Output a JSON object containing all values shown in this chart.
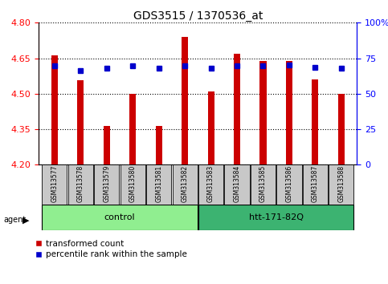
{
  "title": "GDS3515 / 1370536_at",
  "samples": [
    "GSM313577",
    "GSM313578",
    "GSM313579",
    "GSM313580",
    "GSM313581",
    "GSM313582",
    "GSM313583",
    "GSM313584",
    "GSM313585",
    "GSM313586",
    "GSM313587",
    "GSM313588"
  ],
  "red_values": [
    4.663,
    4.558,
    4.365,
    4.5,
    4.365,
    4.74,
    4.508,
    4.668,
    4.638,
    4.638,
    4.562,
    4.498
  ],
  "blue_values": [
    4.618,
    4.598,
    4.608,
    4.618,
    4.608,
    4.618,
    4.608,
    4.618,
    4.618,
    4.62,
    4.612,
    4.608
  ],
  "y_min": 4.2,
  "y_max": 4.8,
  "y_ticks_left": [
    4.2,
    4.35,
    4.5,
    4.65,
    4.8
  ],
  "y_ticks_right_vals": [
    0,
    25,
    50,
    75,
    100
  ],
  "y_ticks_right_labels": [
    "0",
    "25",
    "50",
    "75",
    "100%"
  ],
  "groups": [
    {
      "label": "control",
      "start": 0,
      "end": 5,
      "color": "#90EE90"
    },
    {
      "label": "htt-171-82Q",
      "start": 6,
      "end": 11,
      "color": "#3CB371"
    }
  ],
  "agent_label": "agent",
  "legend_red": "transformed count",
  "legend_blue": "percentile rank within the sample",
  "bar_color": "#CC0000",
  "dot_color": "#0000CC",
  "background_color": "#ffffff",
  "sample_box_color": "#C8C8C8",
  "bar_width": 0.25
}
